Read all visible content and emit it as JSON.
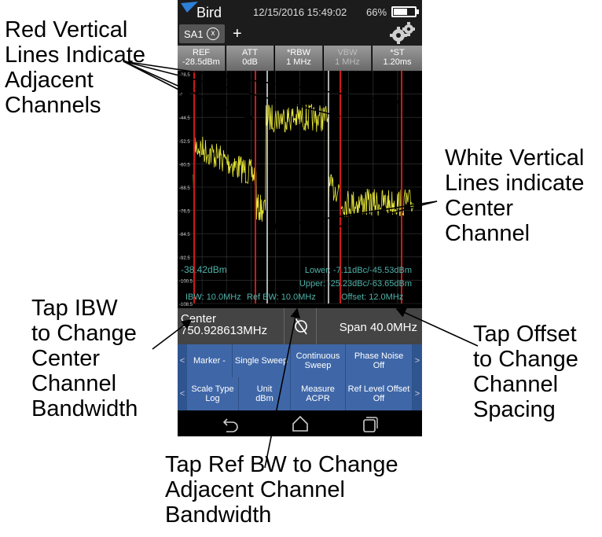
{
  "annotations": {
    "red_lines": "Red Vertical\nLines Indicate\nAdjacent\nChannels",
    "white_lines": "White Vertical\nLines indicate\nCenter\nChannel",
    "ibw": "Tap IBW\nto Change\nCenter\nChannel\nBandwidth",
    "offset": "Tap Offset\nto Change\nChannel\nSpacing",
    "refbw": "Tap Ref BW to Change\nAdjacent Channel\nBandwidth"
  },
  "status": {
    "brand": "Bird",
    "datetime": "12/15/2016 15:49:02",
    "battery": "66%",
    "battery_level": 0.66
  },
  "tab": {
    "label": "SA1",
    "close": "x",
    "add": "+"
  },
  "params": [
    {
      "name": "REF",
      "value": "-28.5dBm"
    },
    {
      "name": "ATT",
      "value": "0dB"
    },
    {
      "name": "*RBW",
      "value": "1 MHz"
    },
    {
      "name": "VBW",
      "value": "1 MHz",
      "dim": true
    },
    {
      "name": "*ST",
      "value": "1.20ms"
    }
  ],
  "plot": {
    "y_ticks": [
      "-28.5",
      "-36.5",
      "-44.5",
      "-52.5",
      "-60.5",
      "-68.5",
      "-76.5",
      "-84.5",
      "-92.5",
      "-100.5",
      "-108.5"
    ],
    "power": "-38.42dBm",
    "lower": "Lower: -7.11dBc/-45.53dBm",
    "upper": "Upper: -25.23dBc/-63.65dBm",
    "ibw": "IBW: 10.0MHz",
    "refbw": "Ref BW: 10.0MHz",
    "offset": "Offset: 12.0MHz",
    "colors": {
      "trace": "#e8e83a",
      "adjacent_line": "#d01818",
      "center_line": "#e8e8e8",
      "readout": "#4fb3a9",
      "grid": "#3a3a3a"
    }
  },
  "center_bar": {
    "center_label": "Center",
    "center_value": "750.928613MHz",
    "span": "Span 40.0MHz"
  },
  "softkeys_row1": [
    "Marker -",
    "Single Sweep",
    "Continuous\nSweep",
    "Phase Noise\nOff"
  ],
  "softkeys_row2": [
    "Scale Type\nLog",
    "Unit\ndBm",
    "Measure\nACPR",
    "Ref Level Offset\nOff"
  ],
  "arrows": {
    "left": "<",
    "right": ">"
  },
  "nav": [
    "back-icon",
    "home-icon",
    "recents-icon"
  ]
}
